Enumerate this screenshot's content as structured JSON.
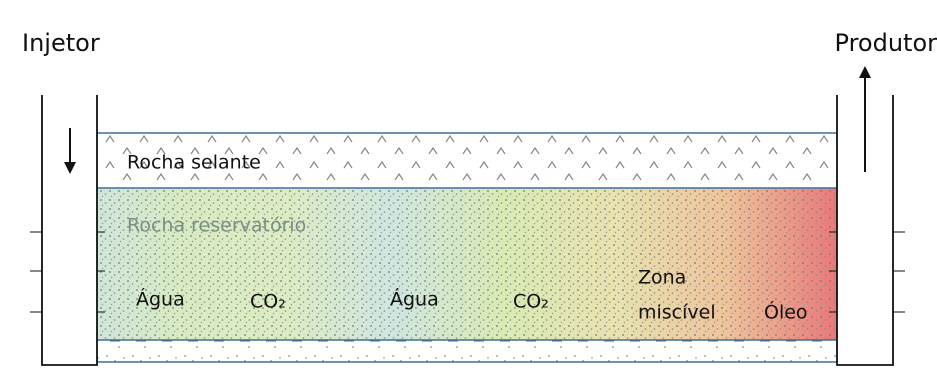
{
  "wells": {
    "injector": "Injetor",
    "producer": "Produtor"
  },
  "layers": {
    "seal": "Rocha selante",
    "reservoir": "Rocha reservatório"
  },
  "zones": {
    "water_1": "Água",
    "co2_1": "CO₂",
    "water_2": "Água",
    "co2_2": "CO₂",
    "miscible": [
      "Zona",
      "miscível"
    ],
    "oil": "Óleo"
  }
}
